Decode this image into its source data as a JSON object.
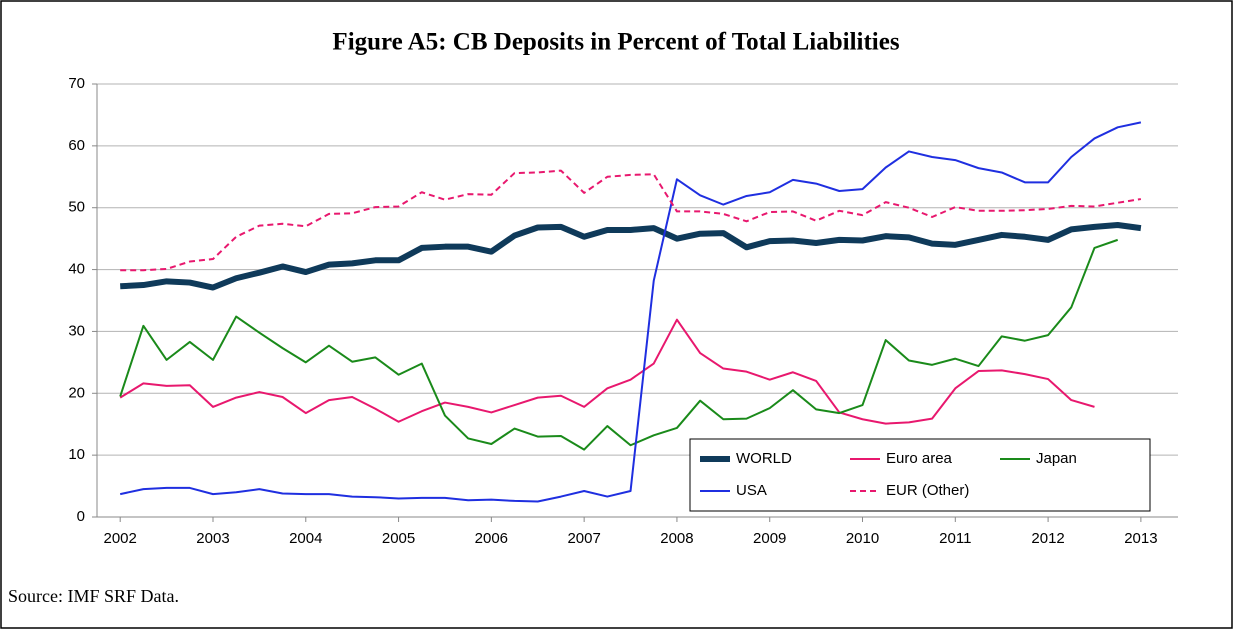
{
  "chart_data": {
    "type": "line",
    "title": "Figure A5: CB Deposits in Percent of Total Liabilities",
    "source": "Source: IMF SRF Data.",
    "x": [
      2002,
      2002.25,
      2002.5,
      2002.75,
      2003,
      2003.25,
      2003.5,
      2003.75,
      2004,
      2004.25,
      2004.5,
      2004.75,
      2005,
      2005.25,
      2005.5,
      2005.75,
      2006,
      2006.25,
      2006.5,
      2006.75,
      2007,
      2007.25,
      2007.5,
      2007.75,
      2008,
      2008.25,
      2008.5,
      2008.75,
      2009,
      2009.25,
      2009.5,
      2009.75,
      2010,
      2010.25,
      2010.5,
      2010.75,
      2011,
      2011.25,
      2011.5,
      2011.75,
      2012,
      2012.25,
      2012.5,
      2012.75,
      2013
    ],
    "xlim": [
      2001.75,
      2013.4
    ],
    "xticks": [
      2002,
      2003,
      2004,
      2005,
      2006,
      2007,
      2008,
      2009,
      2010,
      2011,
      2012,
      2013
    ],
    "ylim": [
      0,
      70
    ],
    "yticks": [
      0,
      10,
      20,
      30,
      40,
      50,
      60,
      70
    ],
    "grid": true,
    "legend": "lower-right",
    "series": [
      {
        "name": "WORLD",
        "color": "#0f3a5a",
        "width": 6,
        "dashed": false,
        "values": [
          37.3,
          37.5,
          38.1,
          37.9,
          37.1,
          38.6,
          39.5,
          40.5,
          39.6,
          40.8,
          41.0,
          41.5,
          41.5,
          43.5,
          43.7,
          43.7,
          42.9,
          45.5,
          46.8,
          46.9,
          45.3,
          46.4,
          46.4,
          46.7,
          45.0,
          45.8,
          45.9,
          43.6,
          44.6,
          44.7,
          44.3,
          44.8,
          44.7,
          45.4,
          45.2,
          44.2,
          44.0,
          44.8,
          45.6,
          45.3,
          44.8,
          46.5,
          46.9,
          47.2,
          46.7
        ]
      },
      {
        "name": "Euro area",
        "color": "#e8186e",
        "width": 2,
        "dashed": false,
        "values": [
          19.3,
          21.6,
          21.2,
          21.3,
          17.8,
          19.3,
          20.2,
          19.4,
          16.8,
          18.9,
          19.4,
          17.5,
          15.4,
          17.1,
          18.5,
          17.8,
          16.9,
          18.1,
          19.3,
          19.6,
          17.8,
          20.8,
          22.2,
          24.8,
          31.9,
          26.5,
          24.0,
          23.5,
          22.2,
          23.4,
          22.0,
          16.9,
          15.8,
          15.1,
          15.3,
          15.9,
          20.8,
          23.6,
          23.7,
          23.1,
          22.3,
          18.9,
          17.8,
          null,
          null
        ]
      },
      {
        "name": "Japan",
        "color": "#1a8a1a",
        "width": 2,
        "dashed": false,
        "values": [
          19.5,
          30.9,
          25.4,
          28.3,
          25.4,
          32.4,
          29.8,
          27.3,
          25.0,
          27.7,
          25.1,
          25.8,
          23.0,
          24.8,
          16.4,
          12.7,
          11.8,
          14.3,
          13.0,
          13.1,
          10.9,
          14.7,
          11.6,
          13.2,
          14.4,
          18.8,
          15.8,
          15.9,
          17.6,
          20.5,
          17.4,
          16.8,
          18.1,
          28.6,
          25.3,
          24.6,
          25.6,
          24.4,
          29.2,
          28.5,
          29.4,
          33.9,
          43.5,
          44.8,
          null
        ]
      },
      {
        "name": "USA",
        "color": "#1f2fe0",
        "width": 2,
        "dashed": false,
        "values": [
          3.7,
          4.5,
          4.7,
          4.7,
          3.7,
          4.0,
          4.5,
          3.8,
          3.7,
          3.7,
          3.3,
          3.2,
          3.0,
          3.1,
          3.1,
          2.7,
          2.8,
          2.6,
          2.5,
          3.3,
          4.2,
          3.3,
          4.2,
          38.2,
          54.6,
          52.0,
          50.5,
          51.9,
          52.5,
          54.5,
          53.9,
          52.7,
          53.0,
          56.5,
          59.1,
          58.2,
          57.7,
          56.4,
          55.7,
          54.1,
          54.1,
          58.2,
          61.2,
          63.0,
          63.8
        ]
      },
      {
        "name": "EUR (Other)",
        "color": "#e8186e",
        "width": 2,
        "dashed": true,
        "values": [
          39.9,
          39.9,
          40.1,
          41.3,
          41.7,
          45.3,
          47.1,
          47.4,
          47.0,
          49.0,
          49.1,
          50.1,
          50.2,
          52.5,
          51.3,
          52.2,
          52.1,
          55.6,
          55.7,
          56.0,
          52.4,
          55.0,
          55.3,
          55.4,
          49.4,
          49.4,
          49.0,
          47.8,
          49.3,
          49.4,
          47.9,
          49.5,
          48.8,
          50.9,
          50.0,
          48.5,
          50.1,
          49.5,
          49.5,
          49.6,
          49.8,
          50.3,
          50.2,
          50.8,
          51.4
        ]
      }
    ]
  }
}
